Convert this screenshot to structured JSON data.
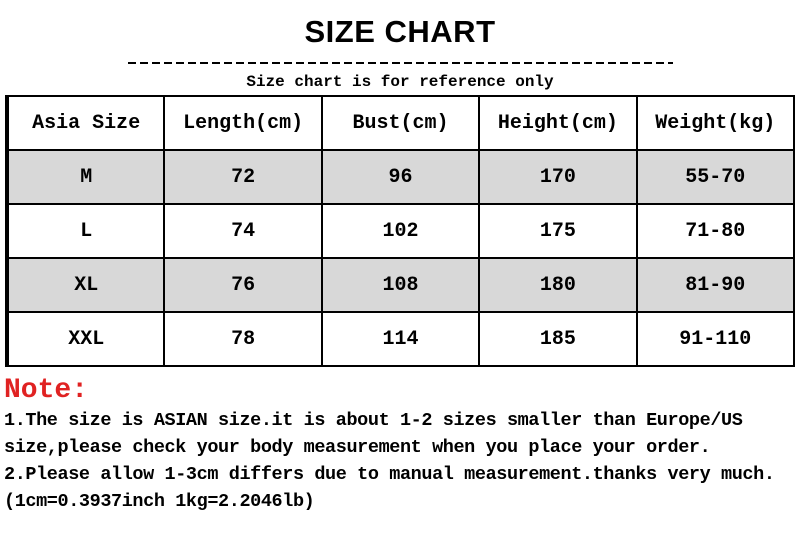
{
  "title": "SIZE CHART",
  "subtitle": "Size chart is for reference only",
  "table": {
    "headers": [
      "Asia Size",
      "Length(cm)",
      "Bust(cm)",
      "Height(cm)",
      "Weight(kg)"
    ],
    "rows": [
      [
        "M",
        "72",
        "96",
        "170",
        "55-70"
      ],
      [
        "L",
        "74",
        "102",
        "175",
        "71-80"
      ],
      [
        "XL",
        "76",
        "108",
        "180",
        "81-90"
      ],
      [
        "XXL",
        "78",
        "114",
        "185",
        "91-110"
      ]
    ]
  },
  "note": {
    "heading": "Note:",
    "line1": "1.The size is ASIAN size.it is about 1-2 sizes smaller than Europe/US size,please check your body measurement when you place your order.",
    "line2": "2.Please allow 1-3cm differs due to manual measurement.thanks very much.(1cm=0.3937inch 1kg=2.2046lb)"
  },
  "colors": {
    "row_alt_gray": "#d8d8d8",
    "note_red": "#e02222",
    "border_black": "#000000"
  },
  "chart_data": {
    "type": "table",
    "title": "SIZE CHART",
    "subtitle": "Size chart is for reference only",
    "columns": [
      "Asia Size",
      "Length(cm)",
      "Bust(cm)",
      "Height(cm)",
      "Weight(kg)"
    ],
    "rows": [
      {
        "asia_size": "M",
        "length_cm": 72,
        "bust_cm": 96,
        "height_cm": 170,
        "weight_kg": "55-70"
      },
      {
        "asia_size": "L",
        "length_cm": 74,
        "bust_cm": 102,
        "height_cm": 175,
        "weight_kg": "71-80"
      },
      {
        "asia_size": "XL",
        "length_cm": 76,
        "bust_cm": 108,
        "height_cm": 180,
        "weight_kg": "81-90"
      },
      {
        "asia_size": "XXL",
        "length_cm": 78,
        "bust_cm": 114,
        "height_cm": 185,
        "weight_kg": "91-110"
      }
    ],
    "notes": [
      "1.The size is ASIAN size.it is about 1-2 sizes smaller than Europe/US size,please check your body measurement when you place your order.",
      "2.Please allow 1-3cm differs due to manual measurement.thanks very much.(1cm=0.3937inch 1kg=2.2046lb)"
    ],
    "layout_hints": {
      "alternating_row_shading": [
        "M",
        "XL"
      ],
      "grid": true,
      "header_row_background": "#ffffff"
    }
  }
}
